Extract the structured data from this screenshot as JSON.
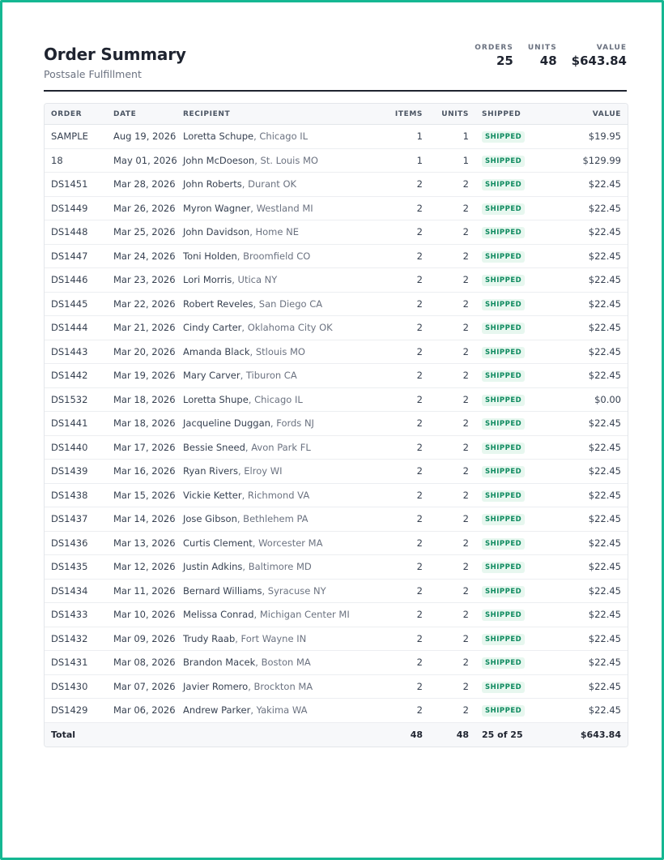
{
  "header": {
    "title": "Order Summary",
    "subtitle": "Postsale Fulfillment",
    "stats": [
      {
        "label": "ORDERS",
        "value": "25"
      },
      {
        "label": "UNITS",
        "value": "48"
      },
      {
        "label": "VALUE",
        "value": "$643.84"
      }
    ]
  },
  "table": {
    "columns": [
      "ORDER",
      "DATE",
      "RECIPIENT",
      "ITEMS",
      "UNITS",
      "SHIPPED",
      "VALUE"
    ],
    "rows": [
      {
        "order": "SAMPLE",
        "date": "Aug 19, 2026",
        "name": "Loretta Schupe",
        "city": ", Chicago IL",
        "items": "1",
        "units": "1",
        "status": "SHIPPED",
        "value": "$19.95"
      },
      {
        "order": "18",
        "date": "May 01, 2026",
        "name": "John McDoeson",
        "city": ", St. Louis MO",
        "items": "1",
        "units": "1",
        "status": "SHIPPED",
        "value": "$129.99"
      },
      {
        "order": "DS1451",
        "date": "Mar 28, 2026",
        "name": "John Roberts",
        "city": ", Durant OK",
        "items": "2",
        "units": "2",
        "status": "SHIPPED",
        "value": "$22.45"
      },
      {
        "order": "DS1449",
        "date": "Mar 26, 2026",
        "name": "Myron Wagner",
        "city": ", Westland MI",
        "items": "2",
        "units": "2",
        "status": "SHIPPED",
        "value": "$22.45"
      },
      {
        "order": "DS1448",
        "date": "Mar 25, 2026",
        "name": "John Davidson",
        "city": ", Home NE",
        "items": "2",
        "units": "2",
        "status": "SHIPPED",
        "value": "$22.45"
      },
      {
        "order": "DS1447",
        "date": "Mar 24, 2026",
        "name": "Toni Holden",
        "city": ", Broomfield CO",
        "items": "2",
        "units": "2",
        "status": "SHIPPED",
        "value": "$22.45"
      },
      {
        "order": "DS1446",
        "date": "Mar 23, 2026",
        "name": "Lori Morris",
        "city": ", Utica NY",
        "items": "2",
        "units": "2",
        "status": "SHIPPED",
        "value": "$22.45"
      },
      {
        "order": "DS1445",
        "date": "Mar 22, 2026",
        "name": "Robert Reveles",
        "city": ", San Diego CA",
        "items": "2",
        "units": "2",
        "status": "SHIPPED",
        "value": "$22.45"
      },
      {
        "order": "DS1444",
        "date": "Mar 21, 2026",
        "name": "Cindy Carter",
        "city": ", Oklahoma City OK",
        "items": "2",
        "units": "2",
        "status": "SHIPPED",
        "value": "$22.45"
      },
      {
        "order": "DS1443",
        "date": "Mar 20, 2026",
        "name": "Amanda Black",
        "city": ", Stlouis MO",
        "items": "2",
        "units": "2",
        "status": "SHIPPED",
        "value": "$22.45"
      },
      {
        "order": "DS1442",
        "date": "Mar 19, 2026",
        "name": "Mary Carver",
        "city": ", Tiburon CA",
        "items": "2",
        "units": "2",
        "status": "SHIPPED",
        "value": "$22.45"
      },
      {
        "order": "DS1532",
        "date": "Mar 18, 2026",
        "name": "Loretta Shupe",
        "city": ", Chicago IL",
        "items": "2",
        "units": "2",
        "status": "SHIPPED",
        "value": "$0.00"
      },
      {
        "order": "DS1441",
        "date": "Mar 18, 2026",
        "name": "Jacqueline Duggan",
        "city": ", Fords NJ",
        "items": "2",
        "units": "2",
        "status": "SHIPPED",
        "value": "$22.45"
      },
      {
        "order": "DS1440",
        "date": "Mar 17, 2026",
        "name": "Bessie Sneed",
        "city": ", Avon Park FL",
        "items": "2",
        "units": "2",
        "status": "SHIPPED",
        "value": "$22.45"
      },
      {
        "order": "DS1439",
        "date": "Mar 16, 2026",
        "name": "Ryan Rivers",
        "city": ", Elroy WI",
        "items": "2",
        "units": "2",
        "status": "SHIPPED",
        "value": "$22.45"
      },
      {
        "order": "DS1438",
        "date": "Mar 15, 2026",
        "name": "Vickie Ketter",
        "city": ", Richmond VA",
        "items": "2",
        "units": "2",
        "status": "SHIPPED",
        "value": "$22.45"
      },
      {
        "order": "DS1437",
        "date": "Mar 14, 2026",
        "name": "Jose Gibson",
        "city": ", Bethlehem PA",
        "items": "2",
        "units": "2",
        "status": "SHIPPED",
        "value": "$22.45"
      },
      {
        "order": "DS1436",
        "date": "Mar 13, 2026",
        "name": "Curtis Clement",
        "city": ", Worcester MA",
        "items": "2",
        "units": "2",
        "status": "SHIPPED",
        "value": "$22.45"
      },
      {
        "order": "DS1435",
        "date": "Mar 12, 2026",
        "name": "Justin Adkins",
        "city": ", Baltimore MD",
        "items": "2",
        "units": "2",
        "status": "SHIPPED",
        "value": "$22.45"
      },
      {
        "order": "DS1434",
        "date": "Mar 11, 2026",
        "name": "Bernard Williams",
        "city": ", Syracuse NY",
        "items": "2",
        "units": "2",
        "status": "SHIPPED",
        "value": "$22.45"
      },
      {
        "order": "DS1433",
        "date": "Mar 10, 2026",
        "name": "Melissa Conrad",
        "city": ", Michigan Center MI",
        "items": "2",
        "units": "2",
        "status": "SHIPPED",
        "value": "$22.45"
      },
      {
        "order": "DS1432",
        "date": "Mar 09, 2026",
        "name": "Trudy Raab",
        "city": ", Fort Wayne IN",
        "items": "2",
        "units": "2",
        "status": "SHIPPED",
        "value": "$22.45"
      },
      {
        "order": "DS1431",
        "date": "Mar 08, 2026",
        "name": "Brandon Macek",
        "city": ", Boston MA",
        "items": "2",
        "units": "2",
        "status": "SHIPPED",
        "value": "$22.45"
      },
      {
        "order": "DS1430",
        "date": "Mar 07, 2026",
        "name": "Javier Romero",
        "city": ", Brockton MA",
        "items": "2",
        "units": "2",
        "status": "SHIPPED",
        "value": "$22.45"
      },
      {
        "order": "DS1429",
        "date": "Mar 06, 2026",
        "name": "Andrew Parker",
        "city": ", Yakima WA",
        "items": "2",
        "units": "2",
        "status": "SHIPPED",
        "value": "$22.45"
      }
    ],
    "total": {
      "label": "Total",
      "items": "48",
      "units": "48",
      "shipped": "25 of 25",
      "value": "$643.84"
    }
  },
  "colors": {
    "frame": "#15b792",
    "badge_text": "#0e8a5f",
    "badge_bg": "#e7f7ef"
  }
}
